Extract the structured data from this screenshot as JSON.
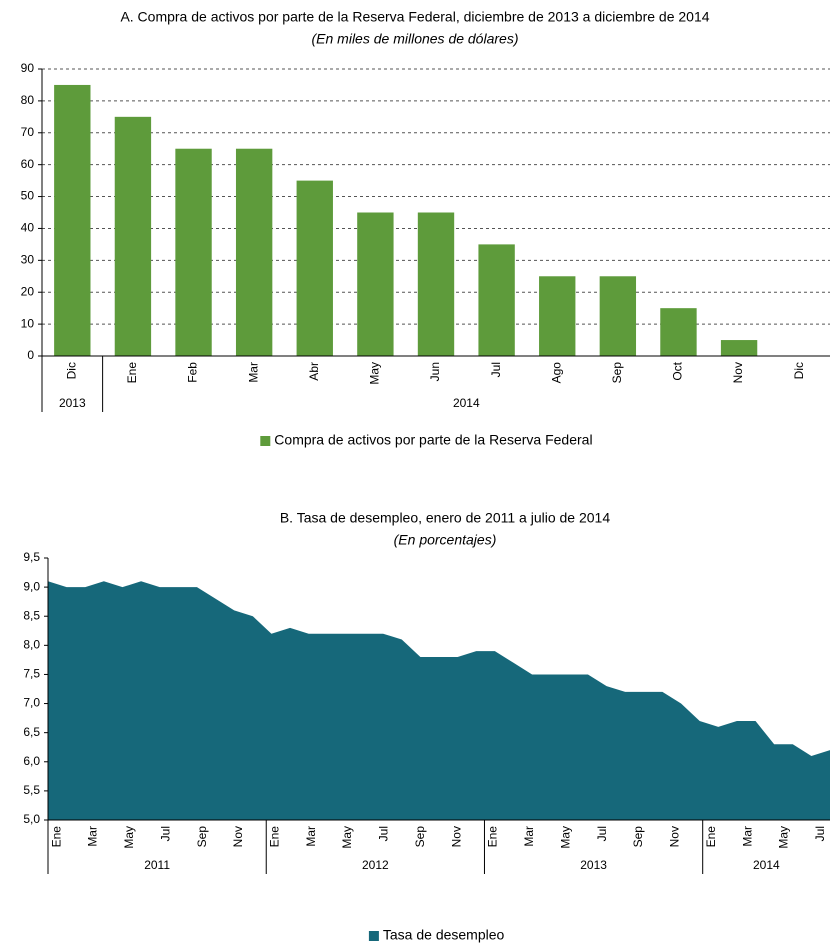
{
  "chart_data": [
    {
      "type": "bar",
      "title": "A. Compra de activos por parte de la Reserva Federal, diciembre de 2013 a diciembre de 2014",
      "subtitle": "(En miles de millones de dólares)",
      "categories": [
        "Dic",
        "Ene",
        "Feb",
        "Mar",
        "Abr",
        "May",
        "Jun",
        "Jul",
        "Ago",
        "Sep",
        "Oct",
        "Nov",
        "Dic"
      ],
      "groups": [
        {
          "label": "2013",
          "count": 1
        },
        {
          "label": "2014",
          "count": 12
        }
      ],
      "series": [
        {
          "name": "Compra de activos por parte de la Reserva Federal",
          "color": "#5e9b3b",
          "values": [
            85,
            75,
            65,
            65,
            55,
            45,
            45,
            35,
            25,
            25,
            15,
            5,
            0
          ]
        }
      ],
      "ylim": [
        0,
        90
      ],
      "yticks": [
        0,
        10,
        20,
        30,
        40,
        50,
        60,
        70,
        80,
        90
      ],
      "grid": true,
      "legend": "bottom"
    },
    {
      "type": "area",
      "title": "B. Tasa de desempleo, enero de 2011 a julio de 2014",
      "subtitle": "(En porcentajes)",
      "categories": [
        "Ene",
        null,
        "Mar",
        null,
        "May",
        null,
        "Jul",
        null,
        "Sep",
        null,
        "Nov",
        null,
        "Ene",
        null,
        "Mar",
        null,
        "May",
        null,
        "Jul",
        null,
        "Sep",
        null,
        "Nov",
        null,
        "Ene",
        null,
        "Mar",
        null,
        "May",
        null,
        "Jul",
        null,
        "Sep",
        null,
        "Nov",
        null,
        "Ene",
        null,
        "Mar",
        null,
        "May",
        null,
        "Jul"
      ],
      "groups": [
        {
          "label": "2011",
          "count": 12
        },
        {
          "label": "2012",
          "count": 12
        },
        {
          "label": "2013",
          "count": 12
        },
        {
          "label": "2014",
          "count": 7
        }
      ],
      "series": [
        {
          "name": "Tasa de desempleo",
          "color": "#16687a",
          "values": [
            9.1,
            9.0,
            9.0,
            9.1,
            9.0,
            9.1,
            9.0,
            9.0,
            9.0,
            8.8,
            8.6,
            8.5,
            8.2,
            8.3,
            8.2,
            8.2,
            8.2,
            8.2,
            8.2,
            8.1,
            7.8,
            7.8,
            7.8,
            7.9,
            7.9,
            7.7,
            7.5,
            7.5,
            7.5,
            7.5,
            7.3,
            7.2,
            7.2,
            7.2,
            7.0,
            6.7,
            6.6,
            6.7,
            6.7,
            6.3,
            6.3,
            6.1,
            6.2
          ]
        }
      ],
      "ylim": [
        5.0,
        9.5
      ],
      "yticks": [
        {
          "value": 5.0,
          "label": "5,0"
        },
        {
          "value": 5.5,
          "label": "5,5"
        },
        {
          "value": 6.0,
          "label": "6,0"
        },
        {
          "value": 6.5,
          "label": "6,5"
        },
        {
          "value": 7.0,
          "label": "7,0"
        },
        {
          "value": 7.5,
          "label": "7,5"
        },
        {
          "value": 8.0,
          "label": "8,0"
        },
        {
          "value": 8.5,
          "label": "8,5"
        },
        {
          "value": 9.0,
          "label": "9,0"
        },
        {
          "value": 9.5,
          "label": "9,5"
        }
      ],
      "grid": false,
      "legend": "bottom"
    }
  ]
}
